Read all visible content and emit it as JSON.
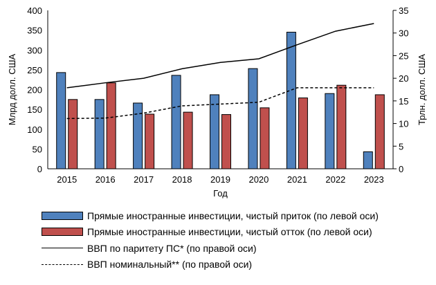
{
  "chart_data": {
    "type": "bar",
    "categories": [
      "2015",
      "2016",
      "2017",
      "2018",
      "2019",
      "2020",
      "2021",
      "2022",
      "2023"
    ],
    "xlabel": "Год",
    "ylabel_left": "Млрд долл. США",
    "ylabel_right": "Трлн. долл. США",
    "ylim_left": [
      0,
      400
    ],
    "ylim_right": [
      0,
      35
    ],
    "yticks_left": [
      "0",
      "50",
      "100",
      "150",
      "200",
      "250",
      "300",
      "350",
      "400"
    ],
    "yticks_right": [
      "0",
      "5",
      "10",
      "15",
      "20",
      "25",
      "30",
      "35"
    ],
    "legend_position": "bottom",
    "series": [
      {
        "name": "Прямые иностранные инвестиции, чистый приток (по левой оси)",
        "kind": "bar",
        "axis": "left",
        "color": "#4f81bd",
        "values": [
          243,
          175,
          166,
          236,
          187,
          253,
          345,
          190,
          43
        ]
      },
      {
        "name": "Прямые иностранные инвестиции, чистый отток (по левой оси)",
        "kind": "bar",
        "axis": "left",
        "color": "#c0504d",
        "values": [
          175,
          217,
          138,
          143,
          137,
          154,
          179,
          211,
          187
        ]
      },
      {
        "name": "ВВП по паритету ПС* (по правой оси)",
        "kind": "line",
        "axis": "right",
        "color": "#000000",
        "values": [
          17.9,
          19.0,
          20.0,
          22.1,
          23.5,
          24.3,
          27.4,
          30.4,
          32.1
        ]
      },
      {
        "name": "ВВП номинальный** (по правой оси)",
        "kind": "dashed-line",
        "axis": "right",
        "color": "#000000",
        "values": [
          11.1,
          11.2,
          12.3,
          13.9,
          14.3,
          14.7,
          17.9,
          17.9,
          17.9
        ]
      }
    ]
  }
}
